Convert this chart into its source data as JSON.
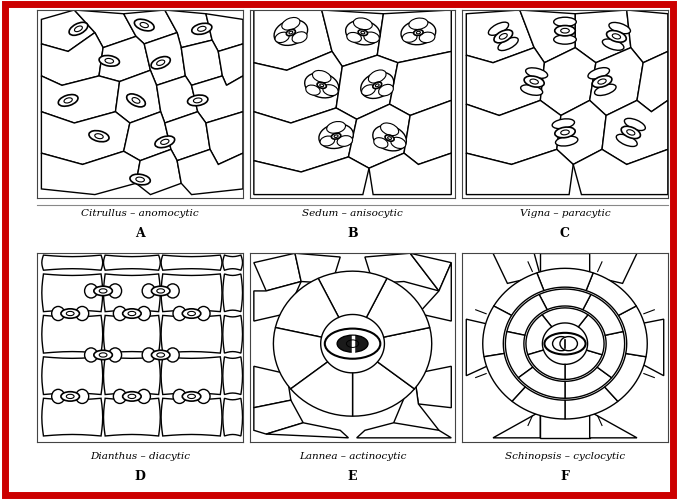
{
  "border_color": "#cc0000",
  "border_width": 5,
  "bg_color": "#ffffff",
  "line_color": "#000000",
  "lw": 1.0,
  "labels": {
    "A": [
      "Citrullus",
      "anomocytic"
    ],
    "B": [
      "Sedum",
      "anisocytic"
    ],
    "C": [
      "Vigna",
      "paracytic"
    ],
    "D": [
      "Dianthus",
      "diacytic"
    ],
    "E": [
      "Lannea",
      "actinocytic"
    ],
    "F": [
      "Schinopsis",
      "cyclocytic"
    ]
  }
}
